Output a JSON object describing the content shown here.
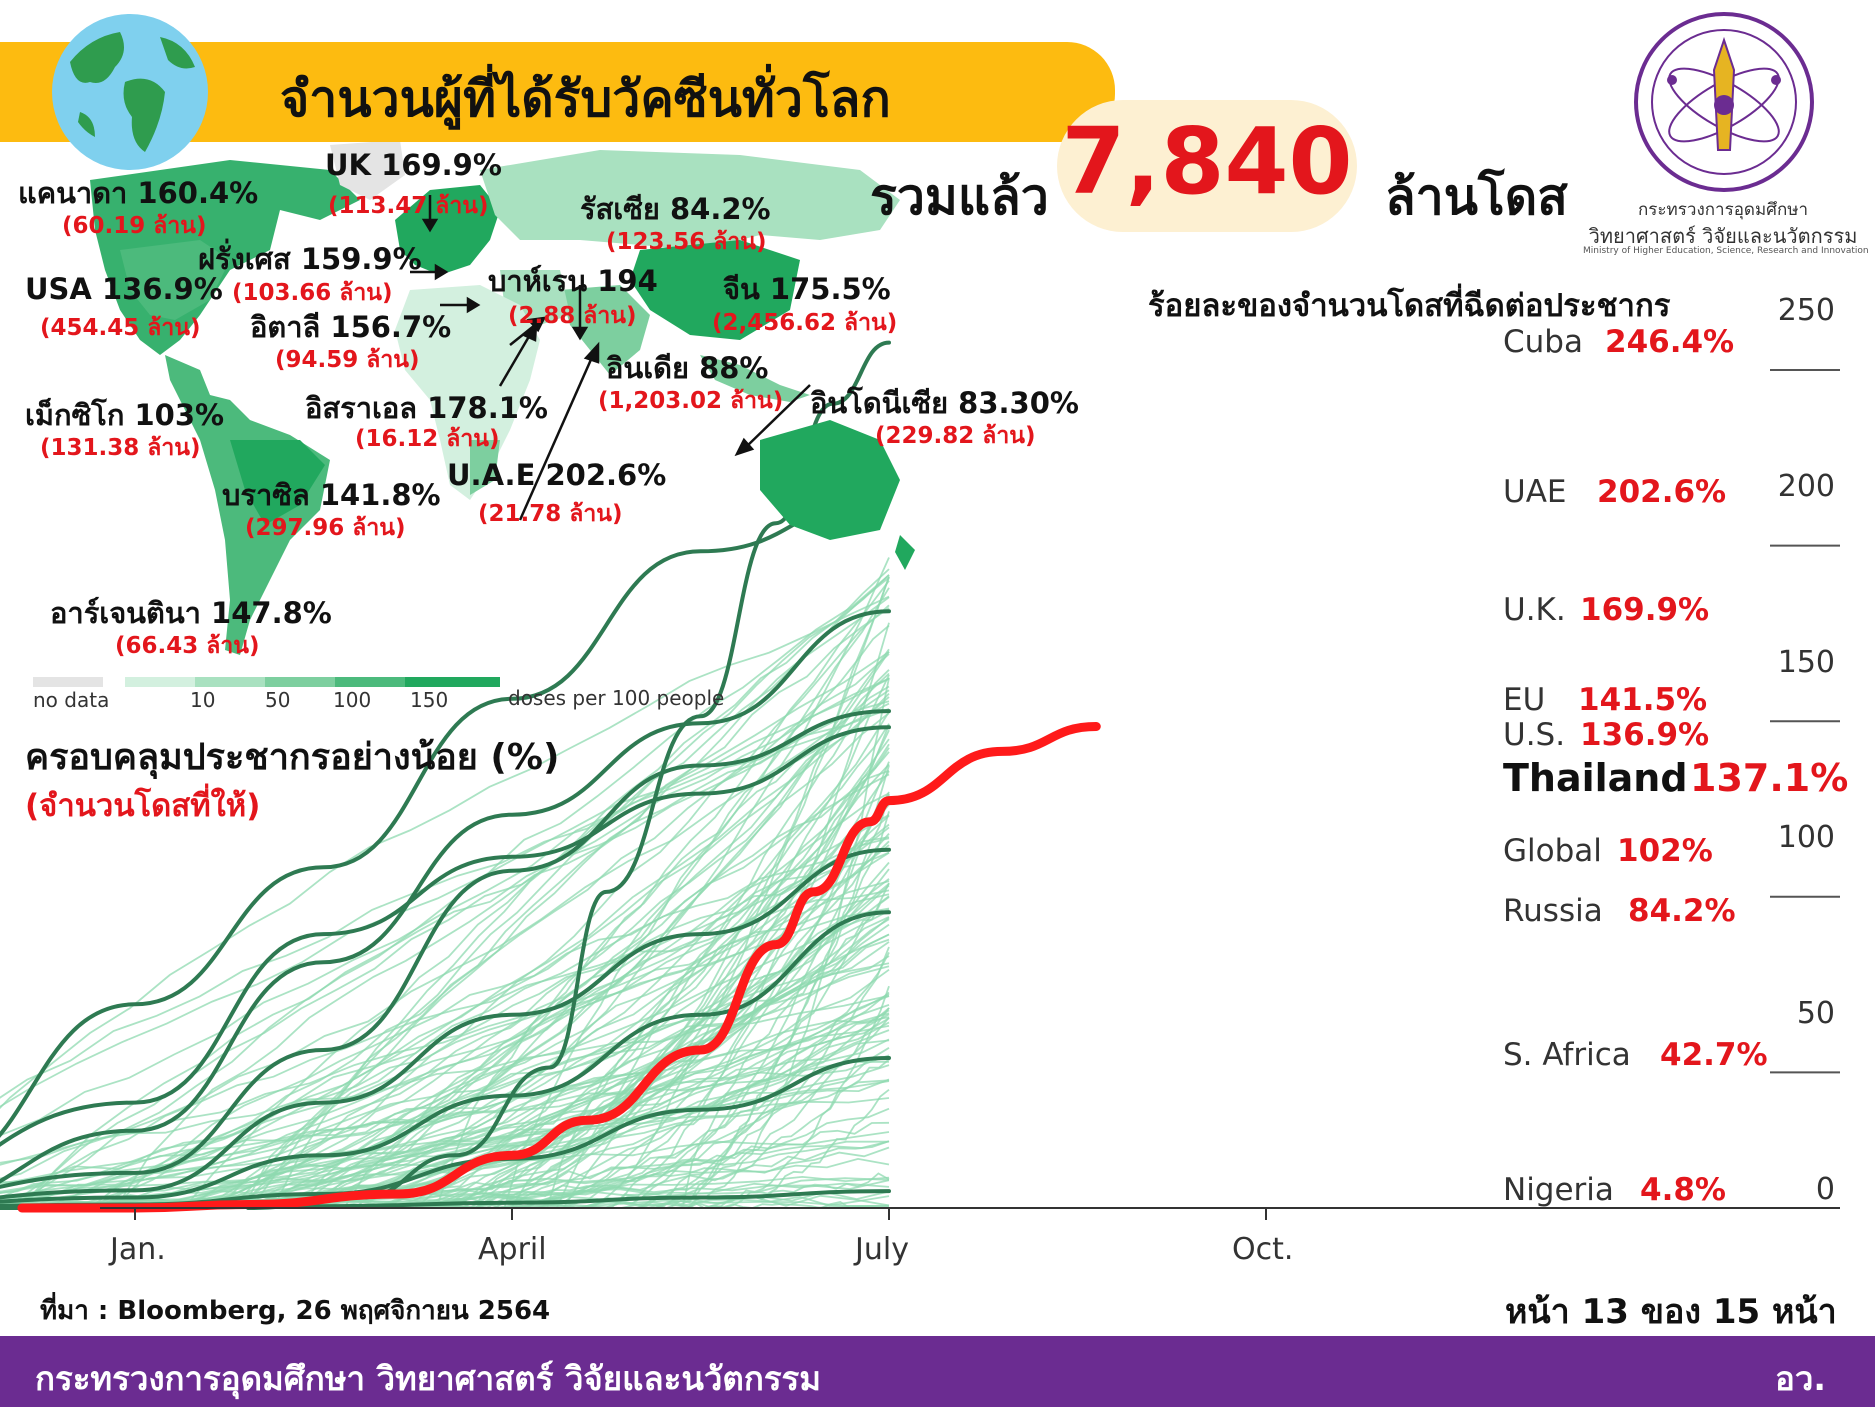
{
  "header": {
    "title": "จำนวนผู้ที่ได้รับวัคซีนทั่วโลก",
    "total_prefix": "รวมแล้ว",
    "total_value": "7,840",
    "total_suffix": "ล้านโดส",
    "globe_icon": "globe-icon"
  },
  "logo": {
    "icon": "ministry-seal-icon",
    "name_th_1": "กระทรวงการอุดมศึกษา",
    "name_th_2": "วิทยาศาสตร์ วิจัยและนวัตกรรม",
    "name_en": "Ministry of Higher Education, Science, Research and Innovation"
  },
  "map": {
    "countries": [
      {
        "name": "แคนาดา 160.4%",
        "doses": "(60.19 ล้าน)"
      },
      {
        "name": "UK 169.9%",
        "doses": "(113.47 ล้าน)"
      },
      {
        "name": "รัสเซีย 84.2%",
        "doses": "(123.56 ล้าน)"
      },
      {
        "name": "ฝรั่งเศส 159.9%",
        "doses": "(103.66 ล้าน)"
      },
      {
        "name": "USA 136.9%",
        "doses": "(454.45 ล้าน)"
      },
      {
        "name": "อิตาลี 156.7%",
        "doses": "(94.59 ล้าน)"
      },
      {
        "name": "บาห์เรน 194",
        "doses": "(2.88 ล้าน)"
      },
      {
        "name": "จีน 175.5%",
        "doses": "(2,456.62 ล้าน)"
      },
      {
        "name": "อินเดีย 88%",
        "doses": "(1,203.02 ล้าน)"
      },
      {
        "name": "เม็กซิโก 103%",
        "doses": "(131.38 ล้าน)"
      },
      {
        "name": "อิสราเอล 178.1%",
        "doses": "(16.12 ล้าน)"
      },
      {
        "name": "อินโดนีเซีย 83.30%",
        "doses": "(229.82 ล้าน)"
      },
      {
        "name": "บราซิล 141.8%",
        "doses": "(297.96 ล้าน)"
      },
      {
        "name": "U.A.E 202.6%",
        "doses": "(21.78 ล้าน)"
      },
      {
        "name": "อาร์เจนตินา 147.8%",
        "doses": "(66.43 ล้าน)"
      }
    ],
    "legend": {
      "no_data": "no data",
      "ticks": [
        "10",
        "50",
        "100",
        "150"
      ],
      "unit": "doses per 100 people",
      "colors": [
        "#e4e4e4",
        "#d3f0df",
        "#a9e1c0",
        "#7dcf9f",
        "#4cba7c",
        "#21a85e"
      ]
    }
  },
  "coverage": {
    "title": "ครอบคลุมประชากรอย่างน้อย (%)",
    "subtitle": "(จำนวนโดสที่ให้)"
  },
  "chart_data": {
    "type": "line",
    "title": "ร้อยละของจำนวนโดสที่ฉีดต่อประชากร",
    "x_ticks": [
      "Jan.",
      "April",
      "July",
      "Oct."
    ],
    "y_ticks": [
      0,
      50,
      100,
      150,
      200,
      250
    ],
    "ylim": [
      0,
      250
    ],
    "colors": {
      "highlight": "#ff1a1a",
      "dark": "#2e7a52",
      "light": "#8fd9b0"
    },
    "series": [
      {
        "name": "Cuba",
        "label": "246.4%",
        "final": 246.4,
        "points": [
          [
            0.3,
            0
          ],
          [
            0.6,
            3
          ],
          [
            0.85,
            15
          ],
          [
            1.1,
            40
          ],
          [
            1.25,
            90
          ],
          [
            1.5,
            140
          ],
          [
            1.7,
            195
          ],
          [
            1.85,
            229
          ],
          [
            2.0,
            246.4
          ]
        ]
      },
      {
        "name": "UAE",
        "label": "202.6%",
        "final": 202.6,
        "points": [
          [
            -0.55,
            10
          ],
          [
            0,
            58
          ],
          [
            0.5,
            97
          ],
          [
            1.0,
            145
          ],
          [
            1.5,
            187
          ],
          [
            2.0,
            202.6
          ]
        ]
      },
      {
        "name": "U.K.",
        "label": "169.9%",
        "final": 169.9,
        "points": [
          [
            -0.6,
            1
          ],
          [
            0,
            22
          ],
          [
            0.5,
            70
          ],
          [
            1.0,
            112
          ],
          [
            1.5,
            138
          ],
          [
            2.0,
            169.9
          ]
        ]
      },
      {
        "name": "EU",
        "label": "141.5%",
        "final": 141.5,
        "points": [
          [
            -0.8,
            0
          ],
          [
            0,
            10
          ],
          [
            0.5,
            45
          ],
          [
            1.0,
            96
          ],
          [
            1.5,
            126
          ],
          [
            2.0,
            141.5
          ]
        ]
      },
      {
        "name": "U.S.",
        "label": "136.9%",
        "final": 136.9,
        "points": [
          [
            -0.8,
            0
          ],
          [
            0,
            30
          ],
          [
            0.5,
            78
          ],
          [
            1.0,
            100
          ],
          [
            1.5,
            118
          ],
          [
            2.0,
            136.9
          ]
        ]
      },
      {
        "name": "Thailand",
        "label": "137.1%",
        "final": 137.1,
        "highlight": true,
        "points": [
          [
            -0.3,
            0
          ],
          [
            0,
            0
          ],
          [
            0.3,
            1
          ],
          [
            0.7,
            4
          ],
          [
            1.0,
            15
          ],
          [
            1.2,
            25
          ],
          [
            1.5,
            45
          ],
          [
            1.7,
            75
          ],
          [
            1.8,
            90
          ],
          [
            1.95,
            110
          ],
          [
            2.0,
            116
          ],
          [
            2.3,
            130
          ],
          [
            2.55,
            137.1
          ]
        ]
      },
      {
        "name": "Global",
        "label": "102%",
        "final": 102,
        "points": [
          [
            -0.8,
            0
          ],
          [
            0,
            5
          ],
          [
            0.5,
            30
          ],
          [
            1.0,
            55
          ],
          [
            1.5,
            78
          ],
          [
            2.0,
            102
          ]
        ]
      },
      {
        "name": "Russia",
        "label": "84.2%",
        "final": 84.2,
        "points": [
          [
            -0.8,
            0
          ],
          [
            0,
            3
          ],
          [
            0.5,
            15
          ],
          [
            1.0,
            32
          ],
          [
            1.5,
            55
          ],
          [
            2.0,
            84.2
          ]
        ]
      },
      {
        "name": "S. Africa",
        "label": "42.7%",
        "final": 42.7,
        "points": [
          [
            -0.8,
            0
          ],
          [
            0,
            1
          ],
          [
            0.5,
            4
          ],
          [
            1.0,
            14
          ],
          [
            1.5,
            28
          ],
          [
            2.0,
            42.7
          ]
        ]
      },
      {
        "name": "Nigeria",
        "label": "4.8%",
        "final": 4.8,
        "points": [
          [
            -0.8,
            0
          ],
          [
            0,
            0
          ],
          [
            0.5,
            0.5
          ],
          [
            1.0,
            1.5
          ],
          [
            1.5,
            3
          ],
          [
            2.0,
            4.8
          ]
        ]
      }
    ]
  },
  "footer": {
    "source": "ที่มา : Bloomberg, 26 พฤศจิกายน 2564",
    "page": "หน้า 13 ของ 15 หน้า",
    "ministry": "กระทรวงการอุดมศึกษา วิทยาศาสตร์ วิจัยและนวัตกรรม",
    "abbr": "อว."
  }
}
